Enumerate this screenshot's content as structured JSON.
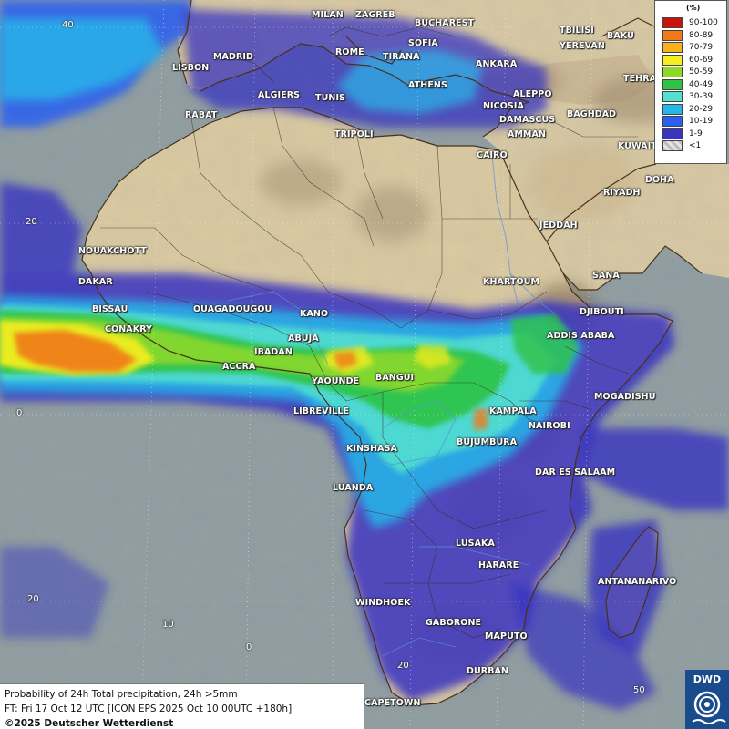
{
  "legend": {
    "unit": "(%)",
    "entries": [
      {
        "label": "90-100",
        "color": "#c8140c"
      },
      {
        "label": "80-89",
        "color": "#f07a1a"
      },
      {
        "label": "70-79",
        "color": "#f7b21e"
      },
      {
        "label": "60-69",
        "color": "#f5ee1f"
      },
      {
        "label": "50-59",
        "color": "#8fd828"
      },
      {
        "label": "40-49",
        "color": "#2fc244"
      },
      {
        "label": "30-39",
        "color": "#53e0cf"
      },
      {
        "label": "20-29",
        "color": "#27b6ea"
      },
      {
        "label": "10-19",
        "color": "#2b5ff0"
      },
      {
        "label": "1-9",
        "color": "#3834c0"
      },
      {
        "label": "<1",
        "color": "#cfcfcf"
      }
    ]
  },
  "info": {
    "line1": "Probability of 24h Total precipitation, 24h >5mm",
    "line2": "FT: Fri 17 Oct 12 UTC [ICON EPS 2025 Oct 10 00UTC +180h]",
    "line3": "©2025 Deutscher Wetterdienst"
  },
  "logo": {
    "text": "DWD"
  },
  "grid_labels": {
    "lat40": "40",
    "lat20": "20",
    "lat0": "0",
    "lat_20": "20",
    "lon0": "0",
    "lon20": "20",
    "lon50": "50",
    "lon10": "10"
  },
  "cities": {
    "milan": "MILAN",
    "zagreb": "ZAGREB",
    "bucharest": "BUCHAREST",
    "tbilisi": "TBILISI",
    "baku": "BAKU",
    "madrid": "MADRID",
    "rome": "ROME",
    "sofia": "SOFIA",
    "yerevan": "YEREVAN",
    "lisbon": "LISBON",
    "tirana": "TIRANA",
    "ankara": "ANKARA",
    "tehran": "TEHRAN",
    "athens": "ATHENS",
    "algiers": "ALGIERS",
    "tunis": "TUNIS",
    "aleppo": "ALEPPO",
    "rabat": "RABAT",
    "nicosia": "NICOSIA",
    "baghdad": "BAGHDAD",
    "damascus": "DAMASCUS",
    "tripoli": "TRIPOLI",
    "amman": "AMMAN",
    "kuwait": "KUWAIT",
    "cairo": "CAIRO",
    "doha": "DOHA",
    "riyadh": "RIYADH",
    "jeddah": "JEDDAH",
    "nouakchott": "NOUAKCHOTT",
    "dakar": "DAKAR",
    "khartoum": "KHARTOUM",
    "sana": "SANA",
    "bissau": "BISSAU",
    "ouagadougou": "OUAGADOUGOU",
    "kano": "KANO",
    "djibouti": "DJIBOUTI",
    "conakry": "CONAKRY",
    "abuja": "ABUJA",
    "addis_ababa": "ADDIS ABABA",
    "ibadan": "IBADAN",
    "accra": "ACCRA",
    "yaounde": "YAOUNDE",
    "bangui": "BANGUI",
    "mogadishu": "MOGADISHU",
    "libreville": "LIBREVILLE",
    "kampala": "KAMPALA",
    "nairobi": "NAIROBI",
    "kinshasa": "KINSHASA",
    "bujumbura": "BUJUMBURA",
    "dar_es_salaam": "DAR ES SALAAM",
    "luanda": "LUANDA",
    "lusaka": "LUSAKA",
    "harare": "HARARE",
    "antananarivo": "ANTANANARIVO",
    "windhoek": "WINDHOEK",
    "gaborone": "GABORONE",
    "maputo": "MAPUTO",
    "durban": "DURBAN",
    "capetown": "CAPETOWN"
  }
}
